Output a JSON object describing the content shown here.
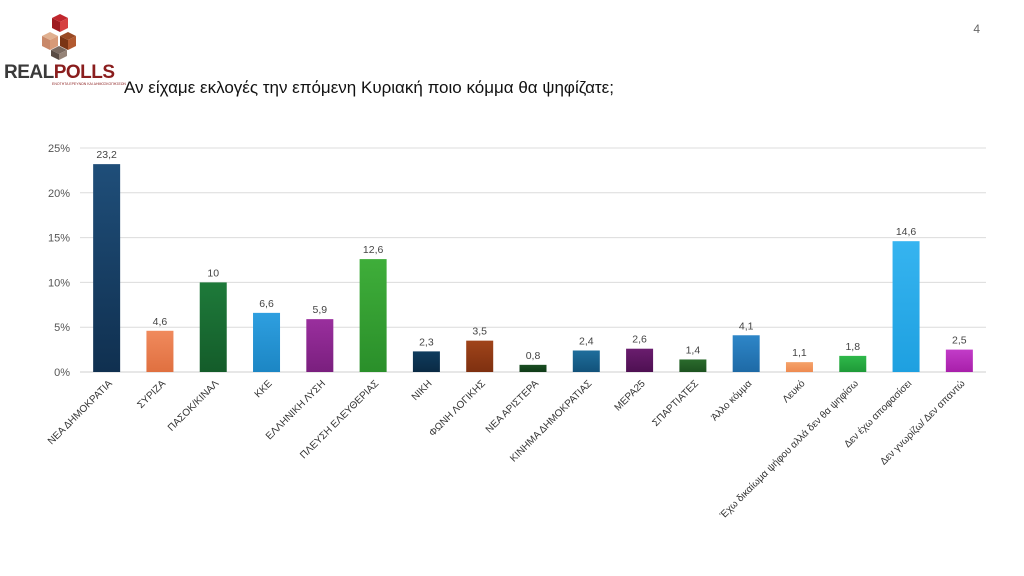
{
  "header": {
    "logo_word_1": "REAL",
    "logo_word_2": "POLLS",
    "logo_tagline": "ΕΝΟΤΗΤΑ ΕΡΕΥΝΩΝ ΚΑΙ ΔΗΜΟΣΚΟΠΗΣΕΩΝ",
    "page_number": "4"
  },
  "chart_data": {
    "type": "bar",
    "title": "Αν είχαμε εκλογές την επόμενη Κυριακή ποιο κόμμα θα ψηφίζατε;",
    "xlabel": "",
    "ylabel": "",
    "ylim": [
      0,
      25
    ],
    "yticks": [
      "0%",
      "5%",
      "10%",
      "15%",
      "20%",
      "25%"
    ],
    "grid": true,
    "categories": [
      "ΝΕΑ ΔΗΜΟΚΡΑΤΙΑ",
      "ΣΥΡΙΖΑ",
      "ΠΑΣΟΚ/ΚΙΝΑΛ",
      "ΚΚΕ",
      "ΕΛΛΗΝΙΚΗ ΛΥΣΗ",
      "ΠΛΕΥΣΗ ΕΛΕΥΘΕΡΙΑΣ",
      "ΝΙΚΗ",
      "ΦΩΝΗ ΛΟΓΙΚΗΣ",
      "ΝΕΑ ΑΡΙΣΤΕΡΑ",
      "ΚΙΝΗΜΑ ΔΗΜΟΚΡΑΤΙΑΣ",
      "ΜΕΡΑ25",
      "ΣΠΑΡΤΙΑΤΕΣ",
      "Άλλο κόμμα",
      "Λευκό",
      "Έχω δικαίωμα ψήφου αλλά δεν θα ψηφίσω",
      "Δεν έχω αποφασίσει",
      "Δεν γνωρίζω/ Δεν απαντώ"
    ],
    "values": [
      23.2,
      4.6,
      10,
      6.6,
      5.9,
      12.6,
      2.3,
      3.5,
      0.8,
      2.4,
      2.6,
      1.4,
      4.1,
      1.1,
      1.8,
      14.6,
      2.5
    ],
    "value_labels": [
      "23,2",
      "4,6",
      "10",
      "6,6",
      "5,9",
      "12,6",
      "2,3",
      "3,5",
      "0,8",
      "2,4",
      "2,6",
      "1,4",
      "4,1",
      "1,1",
      "1,8",
      "14,6",
      "2,5"
    ],
    "colors": [
      "#1f4e79",
      "#f08a5d",
      "#1e7a3a",
      "#2e9fe0",
      "#9a2f9e",
      "#3fae3a",
      "#0f3c5e",
      "#a0441a",
      "#1a4f23",
      "#1f6e9c",
      "#6a1d6e",
      "#2a6b2c",
      "#2e86c8",
      "#f5a26a",
      "#2fb84a",
      "#36b4f0",
      "#c23cc8"
    ],
    "gradient_dark": [
      "#103050",
      "#e07040",
      "#145c2a",
      "#1c86c4",
      "#7a1f7e",
      "#2a8f2a",
      "#0a2a44",
      "#7e3010",
      "#0f3a18",
      "#12527a",
      "#4e1052",
      "#1d5220",
      "#1e6aa6",
      "#ee8a50",
      "#1f9a38",
      "#1ea0e0",
      "#a81faa"
    ]
  }
}
